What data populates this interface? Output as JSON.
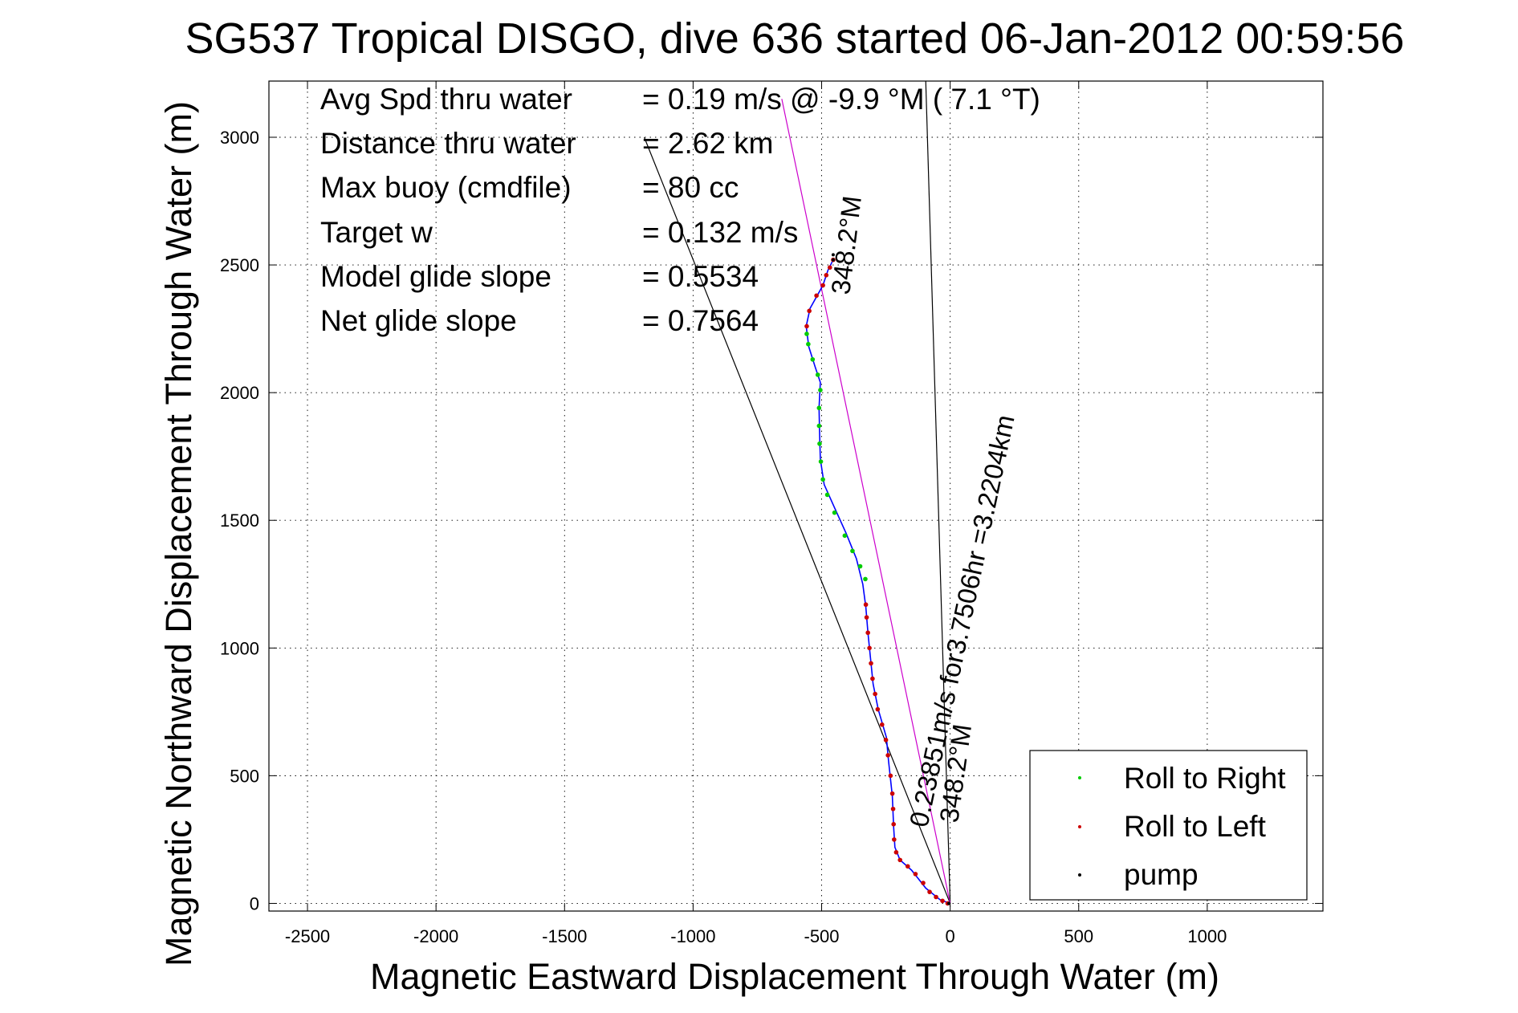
{
  "chart_data": {
    "type": "scatter",
    "title": "SG537 Tropical DISGO, dive 636 started 06-Jan-2012 00:59:56",
    "xlabel": "Magnetic Eastward Displacement Through Water (m)",
    "ylabel": "Magnetic Northward Displacement Through Water (m)",
    "xlim": [
      -2650,
      1450
    ],
    "ylim": [
      -30,
      3220
    ],
    "xticks": [
      -2500,
      -2000,
      -1500,
      -1000,
      -500,
      0,
      500,
      1000
    ],
    "yticks": [
      0,
      500,
      1000,
      1500,
      2000,
      2500,
      3000
    ],
    "grid": true,
    "legend_position": "bottom-right",
    "legend": [
      {
        "label": "Roll to Right",
        "color": "#00cc00"
      },
      {
        "label": "Roll to Left",
        "color": "#cc0000"
      },
      {
        "label": "pump",
        "color": "#000000"
      }
    ],
    "stats": [
      {
        "label": "Avg Spd thru water",
        "value": "=  0.19 m/s @  -9.9 °M (  7.1 °T)"
      },
      {
        "label": "Distance thru water",
        "value": "=  2.62 km"
      },
      {
        "label": "Max buoy (cmdfile)",
        "value": "= 80 cc"
      },
      {
        "label": "Target w",
        "value": "= 0.132 m/s"
      },
      {
        "label": "Model glide slope",
        "value": "= 0.5534"
      },
      {
        "label": "Net glide slope",
        "value": "= 0.7564"
      }
    ],
    "annotations": {
      "heading_upper": "348.2°M",
      "track_label": "0.23851m/s for3.7506hr =3.2204km",
      "heading_lower": "348.2°M"
    },
    "reference_lines": [
      {
        "name": "cone-left",
        "color": "#000000",
        "from": [
          0,
          0
        ],
        "to": [
          -1190,
          3000
        ]
      },
      {
        "name": "cone-right",
        "color": "#000000",
        "from": [
          0,
          0
        ],
        "to": [
          -95,
          3220
        ]
      },
      {
        "name": "heading",
        "color": "#cc00cc",
        "from": [
          0,
          0
        ],
        "to": [
          -655,
          3150
        ]
      }
    ],
    "series": [
      {
        "name": "track",
        "color": "#0000ff",
        "points": [
          [
            0,
            0
          ],
          [
            -40,
            15
          ],
          [
            -95,
            60
          ],
          [
            -150,
            130
          ],
          [
            -195,
            170
          ],
          [
            -215,
            220
          ],
          [
            -220,
            300
          ],
          [
            -225,
            420
          ],
          [
            -240,
            560
          ],
          [
            -248,
            650
          ],
          [
            -280,
            760
          ],
          [
            -300,
            860
          ],
          [
            -310,
            960
          ],
          [
            -320,
            1060
          ],
          [
            -328,
            1160
          ],
          [
            -340,
            1250
          ],
          [
            -365,
            1350
          ],
          [
            -405,
            1450
          ],
          [
            -450,
            1550
          ],
          [
            -490,
            1640
          ],
          [
            -505,
            1740
          ],
          [
            -508,
            1840
          ],
          [
            -510,
            1940
          ],
          [
            -505,
            2040
          ],
          [
            -525,
            2100
          ],
          [
            -550,
            2180
          ],
          [
            -560,
            2260
          ],
          [
            -545,
            2330
          ],
          [
            -495,
            2420
          ],
          [
            -475,
            2480
          ],
          [
            -455,
            2520
          ]
        ]
      },
      {
        "name": "Roll to Right",
        "color": "#00cc00",
        "points": [
          [
            -330,
            1270
          ],
          [
            -350,
            1320
          ],
          [
            -380,
            1380
          ],
          [
            -410,
            1440
          ],
          [
            -450,
            1530
          ],
          [
            -478,
            1600
          ],
          [
            -495,
            1660
          ],
          [
            -503,
            1730
          ],
          [
            -508,
            1800
          ],
          [
            -510,
            1870
          ],
          [
            -510,
            1940
          ],
          [
            -505,
            2010
          ],
          [
            -515,
            2070
          ],
          [
            -535,
            2130
          ],
          [
            -552,
            2190
          ],
          [
            -558,
            2230
          ]
        ]
      },
      {
        "name": "Roll to Left",
        "color": "#cc0000",
        "points": [
          [
            -10,
            0
          ],
          [
            -30,
            10
          ],
          [
            -55,
            25
          ],
          [
            -80,
            45
          ],
          [
            -105,
            80
          ],
          [
            -135,
            115
          ],
          [
            -165,
            145
          ],
          [
            -195,
            170
          ],
          [
            -210,
            200
          ],
          [
            -218,
            250
          ],
          [
            -220,
            310
          ],
          [
            -222,
            370
          ],
          [
            -225,
            430
          ],
          [
            -232,
            500
          ],
          [
            -242,
            580
          ],
          [
            -250,
            640
          ],
          [
            -265,
            700
          ],
          [
            -282,
            760
          ],
          [
            -292,
            820
          ],
          [
            -302,
            880
          ],
          [
            -308,
            940
          ],
          [
            -314,
            1000
          ],
          [
            -320,
            1060
          ],
          [
            -325,
            1120
          ],
          [
            -328,
            1170
          ],
          [
            -558,
            2260
          ],
          [
            -548,
            2320
          ],
          [
            -520,
            2380
          ],
          [
            -495,
            2420
          ],
          [
            -482,
            2460
          ],
          [
            -468,
            2490
          ],
          [
            -455,
            2520
          ]
        ]
      },
      {
        "name": "pump",
        "color": "#000000",
        "points": [
          [
            -5,
            0
          ],
          [
            -455,
            2520
          ],
          [
            -455,
            2540
          ]
        ]
      }
    ]
  }
}
